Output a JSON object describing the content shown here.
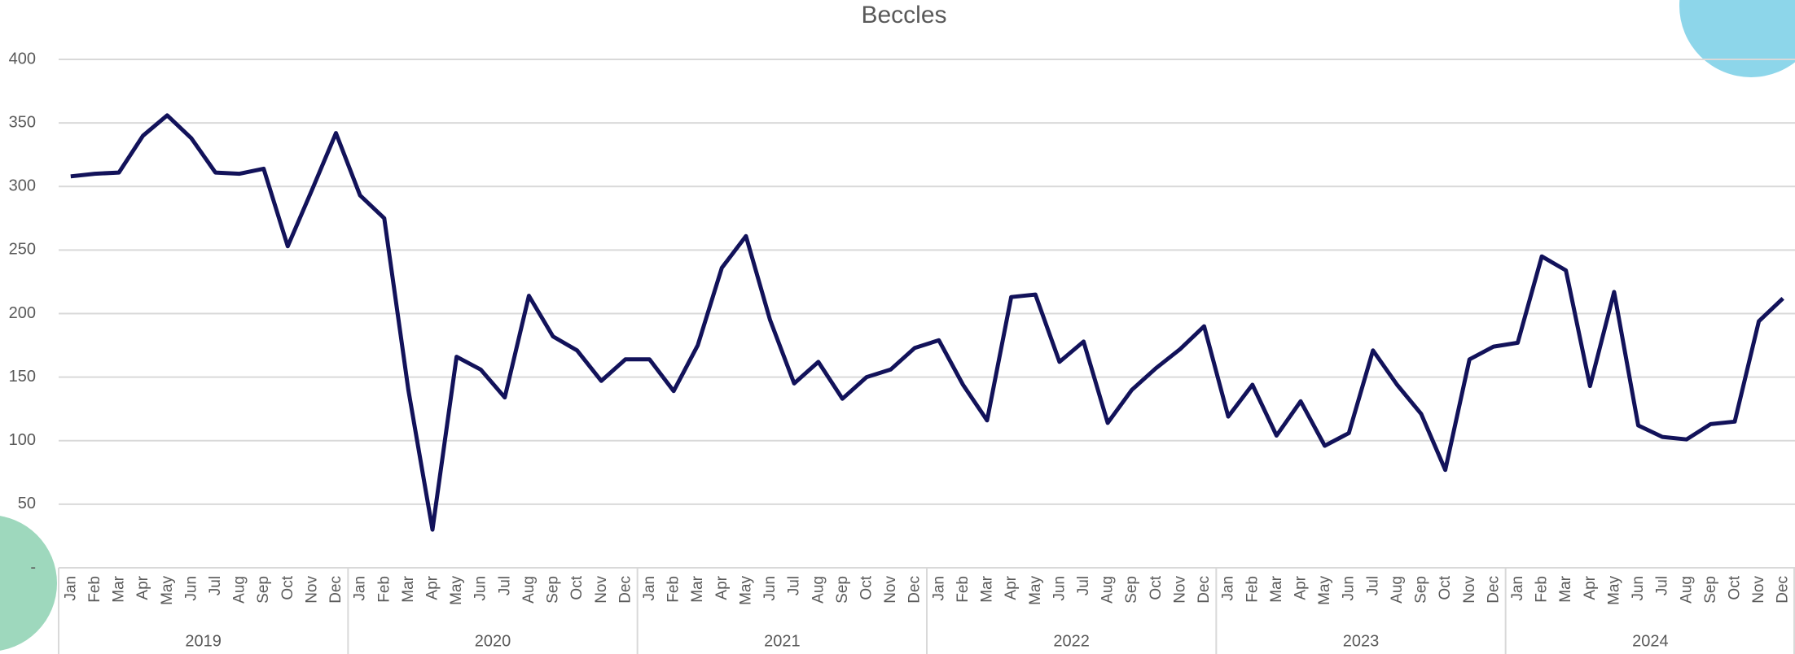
{
  "chart_data": {
    "type": "line",
    "title": "Beccles",
    "categories": [
      "Jan",
      "Feb",
      "Mar",
      "Apr",
      "May",
      "Jun",
      "Jul",
      "Aug",
      "Sep",
      "Oct",
      "Nov",
      "Dec",
      "Jan",
      "Feb",
      "Mar",
      "Apr",
      "May",
      "Jun",
      "Jul",
      "Aug",
      "Sep",
      "Oct",
      "Nov",
      "Dec",
      "Jan",
      "Feb",
      "Mar",
      "Apr",
      "May",
      "Jun",
      "Jul",
      "Aug",
      "Sep",
      "Oct",
      "Nov",
      "Dec",
      "Jan",
      "Feb",
      "Mar",
      "Apr",
      "May",
      "Jun",
      "Jul",
      "Aug",
      "Sep",
      "Oct",
      "Nov",
      "Dec",
      "Jan",
      "Feb",
      "Mar",
      "Apr",
      "May",
      "Jun",
      "Jul",
      "Aug",
      "Sep",
      "Oct",
      "Nov",
      "Dec",
      "Jan",
      "Feb",
      "Mar",
      "Apr",
      "May",
      "Jun",
      "Jul",
      "Aug",
      "Sep",
      "Oct",
      "Nov",
      "Dec"
    ],
    "years": [
      "2019",
      "2020",
      "2021",
      "2022",
      "2023",
      "2024"
    ],
    "values": [
      308,
      310,
      311,
      340,
      356,
      338,
      311,
      310,
      314,
      253,
      297,
      342,
      293,
      275,
      140,
      30,
      166,
      156,
      134,
      214,
      182,
      171,
      147,
      164,
      164,
      139,
      175,
      236,
      261,
      195,
      145,
      162,
      133,
      150,
      156,
      173,
      179,
      144,
      116,
      213,
      215,
      162,
      178,
      114,
      140,
      157,
      172,
      190,
      119,
      144,
      104,
      131,
      96,
      106,
      171,
      144,
      121,
      77,
      164,
      174,
      177,
      245,
      234,
      143,
      217,
      112,
      103,
      101,
      113,
      115,
      194,
      212
    ],
    "color": "#12125a",
    "ylim": [
      0,
      400
    ],
    "yticks": [
      {
        "value": 0,
        "label": "-"
      },
      50,
      100,
      150,
      200,
      250,
      300,
      350,
      400
    ],
    "grid": true
  }
}
